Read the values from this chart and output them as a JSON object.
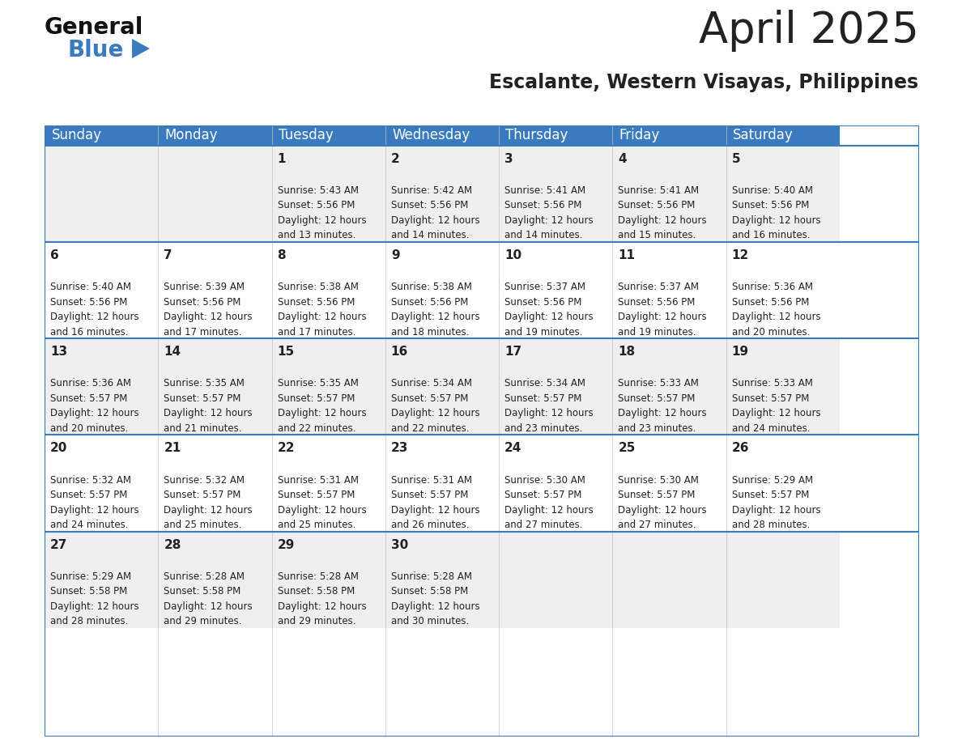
{
  "title": "April 2025",
  "subtitle": "Escalante, Western Visayas, Philippines",
  "header_color": "#3A7BBF",
  "header_text_color": "#FFFFFF",
  "cell_bg_light": "#EFEFEF",
  "cell_bg_white": "#FFFFFF",
  "text_color": "#222222",
  "days_of_week": [
    "Sunday",
    "Monday",
    "Tuesday",
    "Wednesday",
    "Thursday",
    "Friday",
    "Saturday"
  ],
  "weeks": [
    [
      {
        "day": "",
        "info": ""
      },
      {
        "day": "",
        "info": ""
      },
      {
        "day": "1",
        "info": "Sunrise: 5:43 AM\nSunset: 5:56 PM\nDaylight: 12 hours\nand 13 minutes."
      },
      {
        "day": "2",
        "info": "Sunrise: 5:42 AM\nSunset: 5:56 PM\nDaylight: 12 hours\nand 14 minutes."
      },
      {
        "day": "3",
        "info": "Sunrise: 5:41 AM\nSunset: 5:56 PM\nDaylight: 12 hours\nand 14 minutes."
      },
      {
        "day": "4",
        "info": "Sunrise: 5:41 AM\nSunset: 5:56 PM\nDaylight: 12 hours\nand 15 minutes."
      },
      {
        "day": "5",
        "info": "Sunrise: 5:40 AM\nSunset: 5:56 PM\nDaylight: 12 hours\nand 16 minutes."
      }
    ],
    [
      {
        "day": "6",
        "info": "Sunrise: 5:40 AM\nSunset: 5:56 PM\nDaylight: 12 hours\nand 16 minutes."
      },
      {
        "day": "7",
        "info": "Sunrise: 5:39 AM\nSunset: 5:56 PM\nDaylight: 12 hours\nand 17 minutes."
      },
      {
        "day": "8",
        "info": "Sunrise: 5:38 AM\nSunset: 5:56 PM\nDaylight: 12 hours\nand 17 minutes."
      },
      {
        "day": "9",
        "info": "Sunrise: 5:38 AM\nSunset: 5:56 PM\nDaylight: 12 hours\nand 18 minutes."
      },
      {
        "day": "10",
        "info": "Sunrise: 5:37 AM\nSunset: 5:56 PM\nDaylight: 12 hours\nand 19 minutes."
      },
      {
        "day": "11",
        "info": "Sunrise: 5:37 AM\nSunset: 5:56 PM\nDaylight: 12 hours\nand 19 minutes."
      },
      {
        "day": "12",
        "info": "Sunrise: 5:36 AM\nSunset: 5:56 PM\nDaylight: 12 hours\nand 20 minutes."
      }
    ],
    [
      {
        "day": "13",
        "info": "Sunrise: 5:36 AM\nSunset: 5:57 PM\nDaylight: 12 hours\nand 20 minutes."
      },
      {
        "day": "14",
        "info": "Sunrise: 5:35 AM\nSunset: 5:57 PM\nDaylight: 12 hours\nand 21 minutes."
      },
      {
        "day": "15",
        "info": "Sunrise: 5:35 AM\nSunset: 5:57 PM\nDaylight: 12 hours\nand 22 minutes."
      },
      {
        "day": "16",
        "info": "Sunrise: 5:34 AM\nSunset: 5:57 PM\nDaylight: 12 hours\nand 22 minutes."
      },
      {
        "day": "17",
        "info": "Sunrise: 5:34 AM\nSunset: 5:57 PM\nDaylight: 12 hours\nand 23 minutes."
      },
      {
        "day": "18",
        "info": "Sunrise: 5:33 AM\nSunset: 5:57 PM\nDaylight: 12 hours\nand 23 minutes."
      },
      {
        "day": "19",
        "info": "Sunrise: 5:33 AM\nSunset: 5:57 PM\nDaylight: 12 hours\nand 24 minutes."
      }
    ],
    [
      {
        "day": "20",
        "info": "Sunrise: 5:32 AM\nSunset: 5:57 PM\nDaylight: 12 hours\nand 24 minutes."
      },
      {
        "day": "21",
        "info": "Sunrise: 5:32 AM\nSunset: 5:57 PM\nDaylight: 12 hours\nand 25 minutes."
      },
      {
        "day": "22",
        "info": "Sunrise: 5:31 AM\nSunset: 5:57 PM\nDaylight: 12 hours\nand 25 minutes."
      },
      {
        "day": "23",
        "info": "Sunrise: 5:31 AM\nSunset: 5:57 PM\nDaylight: 12 hours\nand 26 minutes."
      },
      {
        "day": "24",
        "info": "Sunrise: 5:30 AM\nSunset: 5:57 PM\nDaylight: 12 hours\nand 27 minutes."
      },
      {
        "day": "25",
        "info": "Sunrise: 5:30 AM\nSunset: 5:57 PM\nDaylight: 12 hours\nand 27 minutes."
      },
      {
        "day": "26",
        "info": "Sunrise: 5:29 AM\nSunset: 5:57 PM\nDaylight: 12 hours\nand 28 minutes."
      }
    ],
    [
      {
        "day": "27",
        "info": "Sunrise: 5:29 AM\nSunset: 5:58 PM\nDaylight: 12 hours\nand 28 minutes."
      },
      {
        "day": "28",
        "info": "Sunrise: 5:28 AM\nSunset: 5:58 PM\nDaylight: 12 hours\nand 29 minutes."
      },
      {
        "day": "29",
        "info": "Sunrise: 5:28 AM\nSunset: 5:58 PM\nDaylight: 12 hours\nand 29 minutes."
      },
      {
        "day": "30",
        "info": "Sunrise: 5:28 AM\nSunset: 5:58 PM\nDaylight: 12 hours\nand 30 minutes."
      },
      {
        "day": "",
        "info": ""
      },
      {
        "day": "",
        "info": ""
      },
      {
        "day": "",
        "info": ""
      }
    ]
  ],
  "logo_text_general": "General",
  "logo_text_blue": "Blue",
  "logo_color_general": "#111111",
  "logo_color_blue": "#3A7BBF",
  "logo_triangle_color": "#3A7BBF",
  "fig_bg": "#FFFFFF",
  "title_fontsize": 38,
  "subtitle_fontsize": 17,
  "day_header_fontsize": 12,
  "day_num_fontsize": 11,
  "info_fontsize": 8.5
}
